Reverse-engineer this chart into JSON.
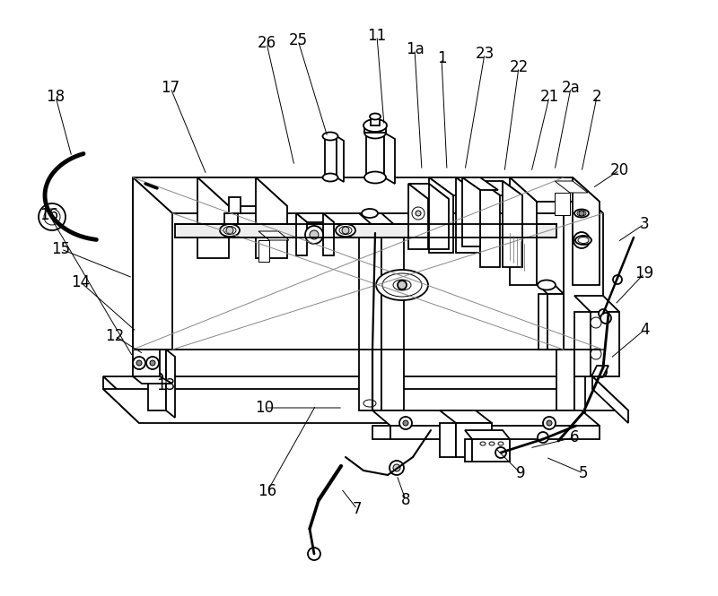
{
  "bg_color": "#ffffff",
  "line_color": "#000000",
  "fig_width": 8.0,
  "fig_height": 6.65,
  "dpi": 100,
  "lw_main": 1.3,
  "lw_thin": 0.7,
  "lw_leader": 0.7,
  "label_fontsize": 12,
  "labels": [
    [
      "18",
      62,
      108,
      80,
      175
    ],
    [
      "17",
      190,
      98,
      230,
      195
    ],
    [
      "26",
      297,
      48,
      328,
      185
    ],
    [
      "25",
      332,
      45,
      365,
      153
    ],
    [
      "11",
      420,
      40,
      428,
      140
    ],
    [
      "1a",
      462,
      55,
      470,
      190
    ],
    [
      "1",
      492,
      65,
      498,
      190
    ],
    [
      "23",
      540,
      60,
      518,
      190
    ],
    [
      "22",
      578,
      75,
      562,
      192
    ],
    [
      "21",
      612,
      108,
      592,
      192
    ],
    [
      "2a",
      636,
      98,
      618,
      190
    ],
    [
      "2",
      665,
      108,
      648,
      192
    ],
    [
      "20",
      690,
      190,
      660,
      210
    ],
    [
      "3",
      718,
      250,
      688,
      270
    ],
    [
      "19",
      718,
      305,
      685,
      340
    ],
    [
      "4",
      718,
      368,
      680,
      400
    ],
    [
      "6",
      640,
      488,
      590,
      500
    ],
    [
      "5",
      650,
      528,
      608,
      510
    ],
    [
      "9",
      580,
      528,
      552,
      500
    ],
    [
      "8",
      452,
      558,
      442,
      530
    ],
    [
      "7",
      398,
      568,
      380,
      545
    ],
    [
      "16",
      298,
      548,
      352,
      452
    ],
    [
      "10",
      295,
      455,
      382,
      455
    ],
    [
      "13",
      185,
      430,
      185,
      412
    ],
    [
      "14",
      90,
      315,
      152,
      370
    ],
    [
      "15",
      68,
      278,
      148,
      310
    ],
    [
      "16",
      55,
      240,
      148,
      398
    ],
    [
      "12",
      128,
      375,
      160,
      395
    ]
  ]
}
